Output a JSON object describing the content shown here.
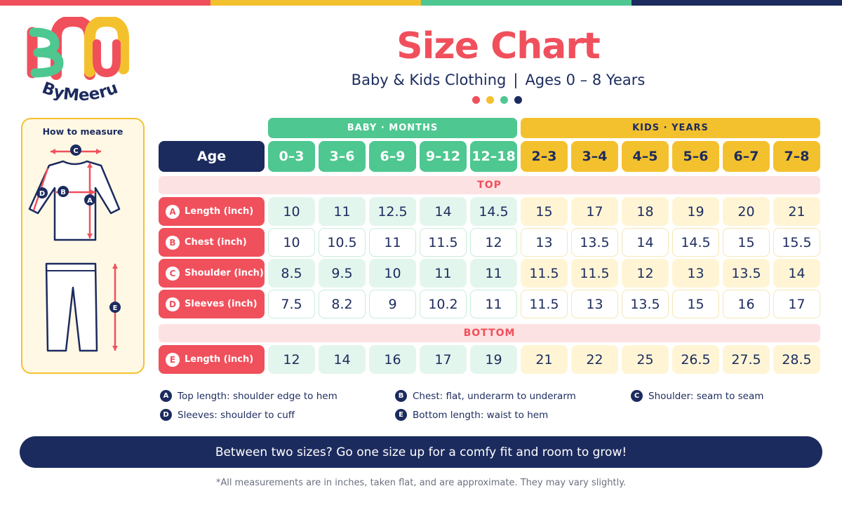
{
  "brand": {
    "name": "ByMeeru",
    "colors": {
      "coral": "#f0505c",
      "yellow": "#f4c12e",
      "green": "#4ec791",
      "navy": "#1c2b5e"
    }
  },
  "header": {
    "title": "Size Chart",
    "subtitle_left": "Baby & Kids Clothing",
    "separator": "|",
    "subtitle_right": "Ages 0 – 8 Years"
  },
  "measure_panel": {
    "title": "How to measure",
    "markers": [
      "C",
      "D",
      "B",
      "A",
      "E"
    ]
  },
  "groups": {
    "baby": "BABY · MONTHS",
    "kids": "KIDS · YEARS"
  },
  "age_label": "Age",
  "baby_ages": [
    "0–3",
    "3–6",
    "6–9",
    "9–12",
    "12–18"
  ],
  "kids_ages": [
    "2–3",
    "3–4",
    "4–5",
    "5–6",
    "6–7",
    "7–8"
  ],
  "sections": {
    "top": "TOP",
    "bottom": "BOTTOM"
  },
  "rows": [
    {
      "letter": "A",
      "label": "Length (inch)",
      "values": [
        "10",
        "11",
        "12.5",
        "14",
        "14.5",
        "15",
        "17",
        "18",
        "19",
        "20",
        "21"
      ]
    },
    {
      "letter": "B",
      "label": "Chest (inch)",
      "values": [
        "10",
        "10.5",
        "11",
        "11.5",
        "12",
        "13",
        "13.5",
        "14",
        "14.5",
        "15",
        "15.5"
      ]
    },
    {
      "letter": "C",
      "label": "Shoulder (inch)",
      "values": [
        "8.5",
        "9.5",
        "10",
        "11",
        "11",
        "11.5",
        "11.5",
        "12",
        "13",
        "13.5",
        "14"
      ]
    },
    {
      "letter": "D",
      "label": "Sleeves (inch)",
      "values": [
        "7.5",
        "8.2",
        "9",
        "10.2",
        "11",
        "11.5",
        "13",
        "13.5",
        "15",
        "16",
        "17"
      ]
    },
    {
      "letter": "E",
      "label": "Length (inch)",
      "values": [
        "12",
        "14",
        "16",
        "17",
        "19",
        "21",
        "22",
        "25",
        "26.5",
        "27.5",
        "28.5"
      ]
    }
  ],
  "legend": [
    {
      "letter": "A",
      "text": "Top length: shoulder edge to hem"
    },
    {
      "letter": "B",
      "text": "Chest: flat, underarm to underarm"
    },
    {
      "letter": "C",
      "text": "Shoulder: seam to seam"
    },
    {
      "letter": "D",
      "text": "Sleeves: shoulder to cuff"
    },
    {
      "letter": "E",
      "text": "Bottom length: waist to hem"
    }
  ],
  "banner": "Between two sizes?  Go one size up for a comfy fit and room to grow!",
  "footnote": "*All measurements are in inches, taken flat, and are approximate. They may vary slightly."
}
